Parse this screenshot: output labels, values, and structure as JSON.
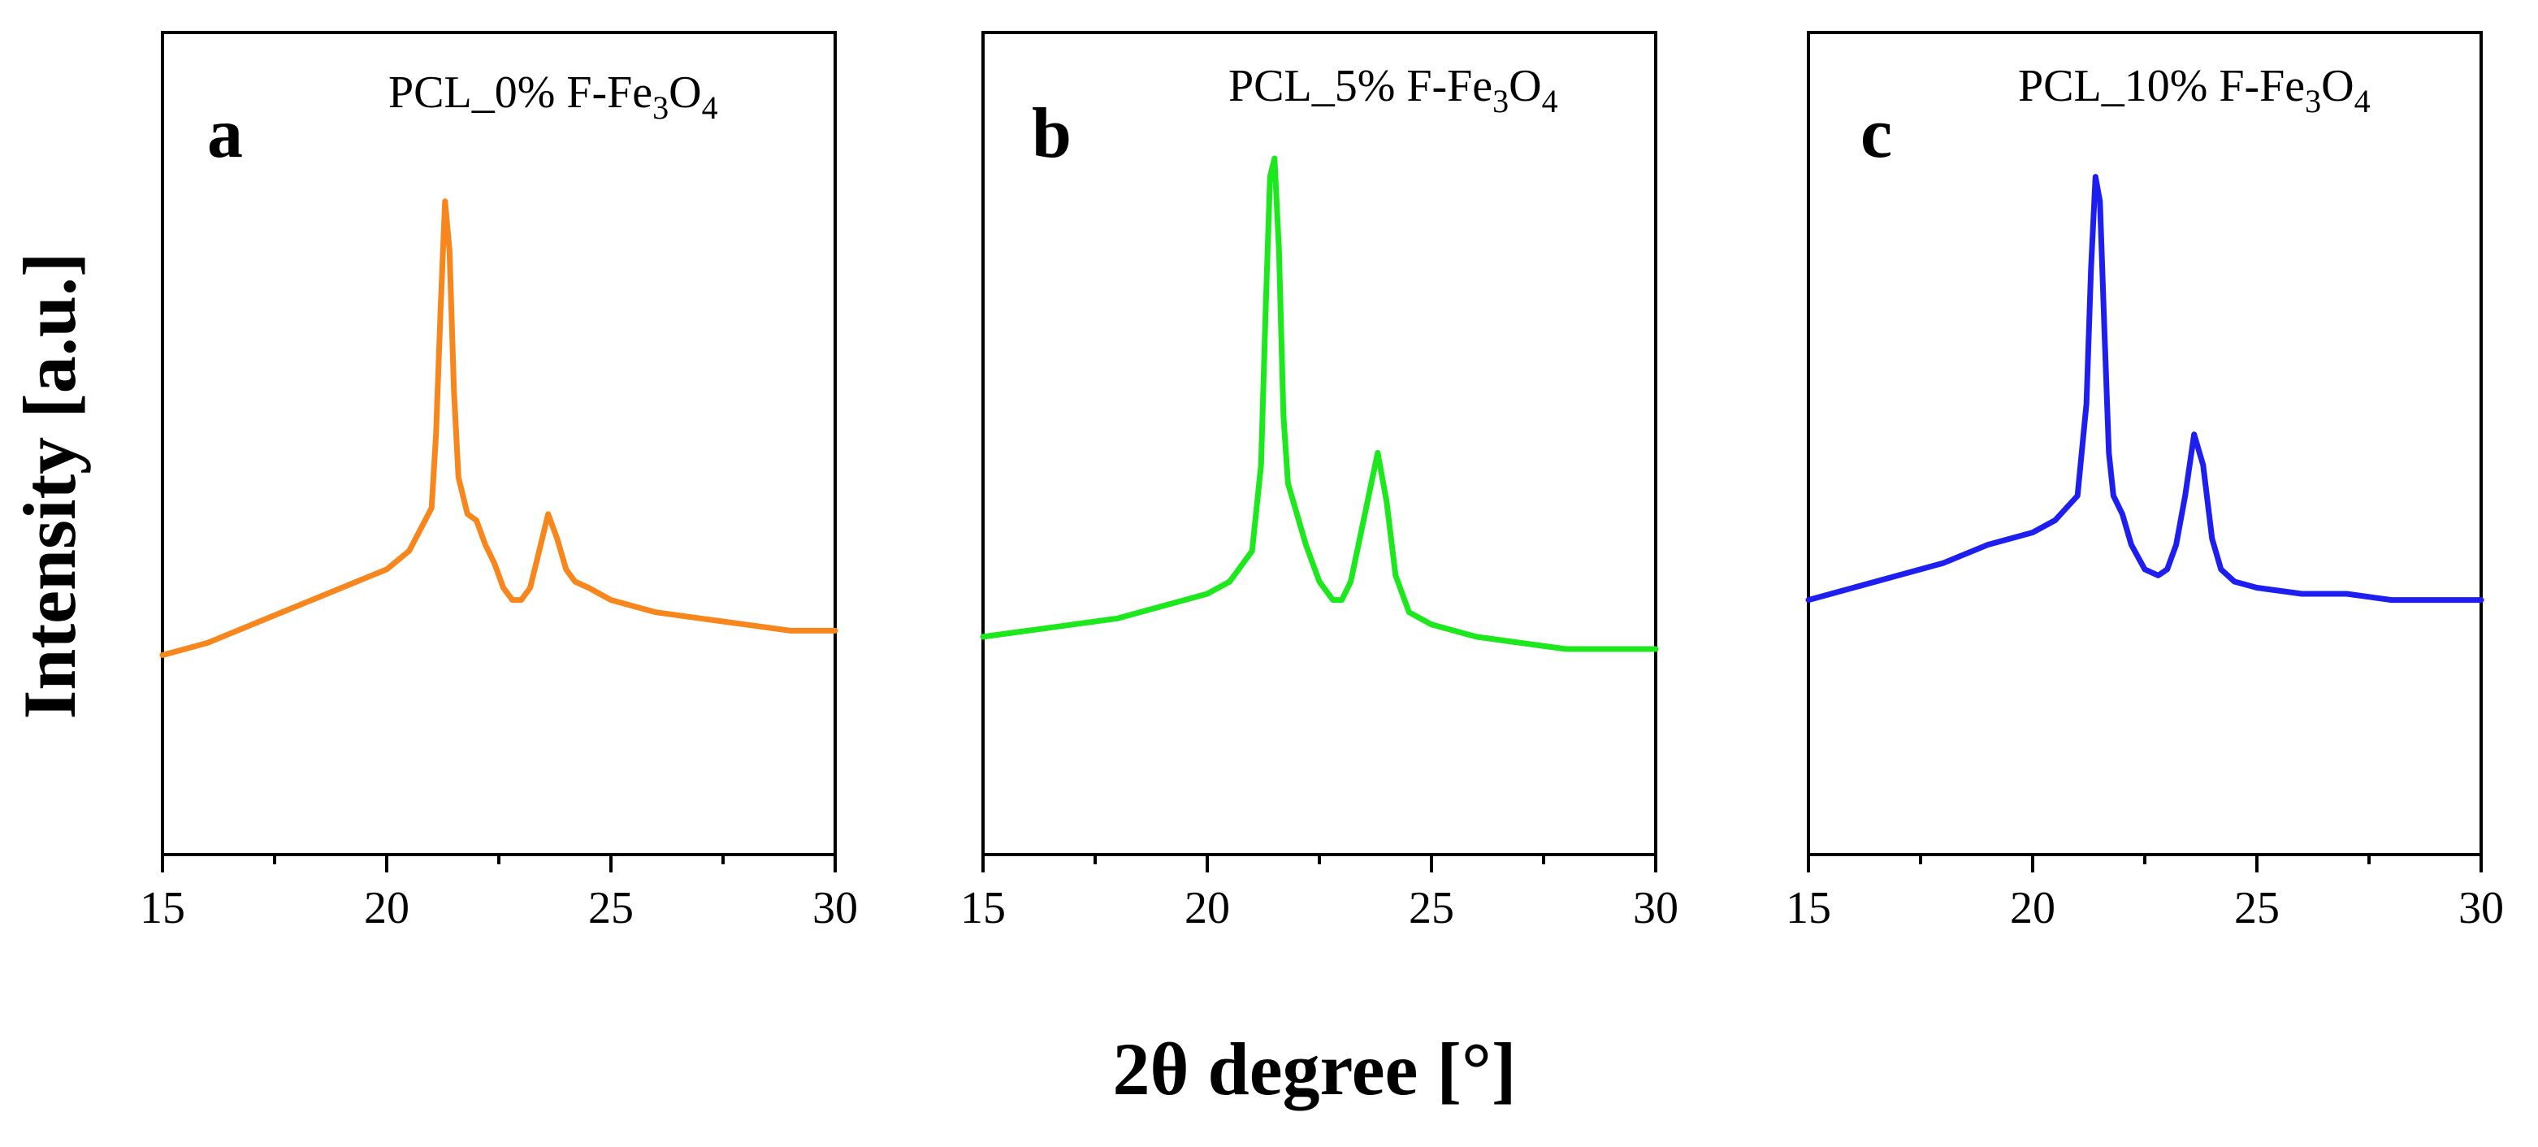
{
  "chart_data": {
    "type": "line",
    "xlabel": "2θ degree [°]",
    "ylabel": "Intensity [a.u.]",
    "xlim": [
      15,
      30
    ],
    "ylim": [
      0,
      1
    ],
    "x_ticks": [
      15,
      20,
      25,
      30
    ],
    "y_ticks_shown": false,
    "grid": false,
    "panels": [
      {
        "letter": "a",
        "title_main": "PCL_0% F-Fe",
        "title_sub1": "3",
        "title_mid": "O",
        "title_sub2": "4",
        "color": "#F7861D",
        "series": {
          "name": "PCL_0% F-Fe3O4",
          "x": [
            15,
            16,
            17,
            18,
            19,
            20,
            20.5,
            21,
            21.1,
            21.2,
            21.3,
            21.4,
            21.5,
            21.6,
            21.8,
            22,
            22.2,
            22.4,
            22.6,
            22.8,
            23,
            23.2,
            23.4,
            23.6,
            23.8,
            24,
            24.2,
            24.5,
            25,
            26,
            27,
            28,
            29,
            30
          ],
          "y": [
            0.19,
            0.21,
            0.24,
            0.27,
            0.3,
            0.33,
            0.36,
            0.43,
            0.55,
            0.75,
            0.93,
            0.85,
            0.62,
            0.48,
            0.42,
            0.41,
            0.37,
            0.34,
            0.3,
            0.28,
            0.28,
            0.3,
            0.36,
            0.42,
            0.38,
            0.33,
            0.31,
            0.3,
            0.28,
            0.26,
            0.25,
            0.24,
            0.23,
            0.23
          ]
        }
      },
      {
        "letter": "b",
        "title_main": "PCL_5% F-Fe",
        "title_sub1": "3",
        "title_mid": "O",
        "title_sub2": "4",
        "color": "#1DE81D",
        "series": {
          "name": "PCL_5% F-Fe3O4",
          "x": [
            15,
            16,
            17,
            18,
            19,
            20,
            20.5,
            21,
            21.2,
            21.3,
            21.4,
            21.5,
            21.6,
            21.7,
            21.8,
            22,
            22.2,
            22.5,
            22.8,
            23,
            23.2,
            23.4,
            23.6,
            23.8,
            24,
            24.2,
            24.5,
            25,
            26,
            27,
            28,
            29,
            30
          ],
          "y": [
            0.22,
            0.23,
            0.24,
            0.25,
            0.27,
            0.29,
            0.31,
            0.36,
            0.5,
            0.75,
            0.97,
            1.0,
            0.85,
            0.58,
            0.47,
            0.42,
            0.37,
            0.31,
            0.28,
            0.28,
            0.31,
            0.38,
            0.45,
            0.52,
            0.44,
            0.32,
            0.26,
            0.24,
            0.22,
            0.21,
            0.2,
            0.2,
            0.2
          ]
        }
      },
      {
        "letter": "c",
        "title_main": "PCL_10% F-Fe",
        "title_sub1": "3",
        "title_mid": "O",
        "title_sub2": "4",
        "color": "#1E1EF0",
        "series": {
          "name": "PCL_10% F-Fe3O4",
          "x": [
            15,
            16,
            17,
            18,
            19,
            20,
            20.5,
            21,
            21.2,
            21.3,
            21.4,
            21.5,
            21.6,
            21.7,
            21.8,
            22,
            22.2,
            22.5,
            22.8,
            23,
            23.2,
            23.4,
            23.6,
            23.8,
            24,
            24.2,
            24.5,
            25,
            26,
            27,
            28,
            29,
            30
          ],
          "y": [
            0.28,
            0.3,
            0.32,
            0.34,
            0.37,
            0.39,
            0.41,
            0.45,
            0.6,
            0.82,
            0.97,
            0.93,
            0.72,
            0.52,
            0.45,
            0.42,
            0.37,
            0.33,
            0.32,
            0.33,
            0.37,
            0.45,
            0.55,
            0.5,
            0.38,
            0.33,
            0.31,
            0.3,
            0.29,
            0.29,
            0.28,
            0.28,
            0.28
          ]
        }
      }
    ]
  }
}
